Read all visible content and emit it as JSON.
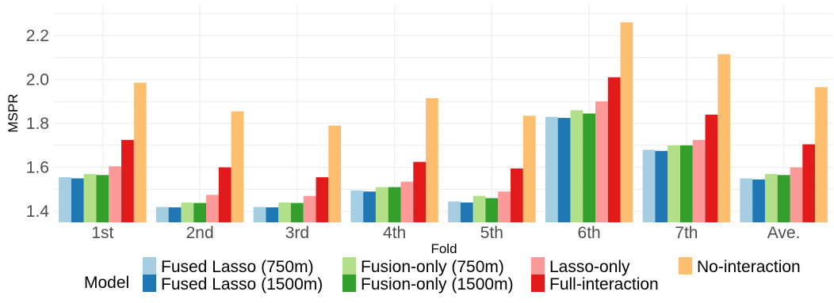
{
  "chart_data": {
    "type": "bar",
    "xlabel": "Fold",
    "ylabel": "MSPR",
    "categories": [
      "1st",
      "2nd",
      "3rd",
      "4th",
      "5th",
      "6th",
      "7th",
      "Ave."
    ],
    "ylim": [
      1.35,
      2.34
    ],
    "yticks": [
      1.4,
      1.6,
      1.8,
      2.0,
      2.2
    ],
    "ytick_labels": [
      "1.4",
      "1.6",
      "1.8",
      "2.0",
      "2.2"
    ],
    "grid": true,
    "legend": {
      "title": "Model",
      "position": "bottom"
    },
    "series": [
      {
        "name": "Fused Lasso (750m)",
        "color": "#a6cee3",
        "values": [
          1.555,
          1.42,
          1.42,
          1.495,
          1.445,
          1.83,
          1.68,
          1.55
        ]
      },
      {
        "name": "Fused Lasso (1500m)",
        "color": "#1f78b4",
        "values": [
          1.55,
          1.418,
          1.418,
          1.49,
          1.44,
          1.825,
          1.675,
          1.545
        ]
      },
      {
        "name": "Fusion-only (750m)",
        "color": "#b2df8a",
        "values": [
          1.57,
          1.44,
          1.44,
          1.51,
          1.47,
          1.86,
          1.7,
          1.57
        ]
      },
      {
        "name": "Fusion-only (1500m)",
        "color": "#33a02c",
        "values": [
          1.565,
          1.438,
          1.438,
          1.51,
          1.46,
          1.845,
          1.7,
          1.565
        ]
      },
      {
        "name": "Lasso-only",
        "color": "#fb9a99",
        "values": [
          1.605,
          1.475,
          1.47,
          1.535,
          1.49,
          1.9,
          1.725,
          1.6
        ]
      },
      {
        "name": "Full-interaction",
        "color": "#e31a1c",
        "values": [
          1.725,
          1.6,
          1.555,
          1.625,
          1.595,
          2.01,
          1.84,
          1.705
        ]
      },
      {
        "name": "No-interaction",
        "color": "#fdbf6f",
        "values": [
          1.985,
          1.855,
          1.79,
          1.915,
          1.835,
          2.26,
          2.115,
          1.965
        ]
      }
    ]
  }
}
